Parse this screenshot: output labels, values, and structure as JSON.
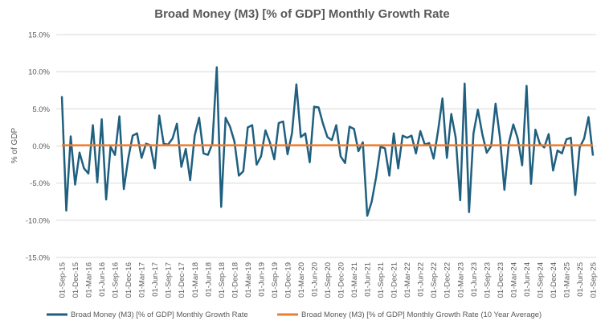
{
  "chart_data": {
    "type": "line",
    "title": "Broad Money (M3) [% of GDP] Monthly Growth Rate",
    "xlabel": "",
    "ylabel": "% of GDP",
    "ylim": [
      -15,
      15
    ],
    "y_ticks": [
      "15.0%",
      "10.0%",
      "5.0%",
      "0.0%",
      "-5.0%",
      "-10.0%",
      "-15.0%"
    ],
    "y_tick_values": [
      15,
      10,
      5,
      0,
      -5,
      -10,
      -15
    ],
    "x_ticks": [
      "01-Sep-15",
      "01-Dec-15",
      "01-Mar-16",
      "01-Jun-16",
      "01-Sep-16",
      "01-Dec-16",
      "01-Mar-17",
      "01-Jun-17",
      "01-Sep-17",
      "01-Dec-17",
      "01-Mar-18",
      "01-Jun-18",
      "01-Sep-18",
      "01-Dec-18",
      "01-Mar-19",
      "01-Jun-19",
      "01-Sep-19",
      "01-Dec-19",
      "01-Mar-20",
      "01-Jun-20",
      "01-Sep-20",
      "01-Dec-20",
      "01-Mar-21",
      "01-Jun-21",
      "01-Sep-21",
      "01-Dec-21",
      "01-Mar-22",
      "01-Jun-22",
      "01-Sep-22",
      "01-Dec-22",
      "01-Mar-23",
      "01-Jun-23",
      "01-Sep-23",
      "01-Dec-23",
      "01-Mar-24",
      "01-Jun-24",
      "01-Sep-24",
      "01-Dec-24",
      "01-Mar-25",
      "01-Jun-25",
      "01-Sep-25"
    ],
    "grid": true,
    "legend_position": "bottom",
    "series": [
      {
        "name": "Broad Money (M3) [% of GDP] Monthly Growth Rate",
        "color": "#1f5f7f",
        "values": [
          6.7,
          -8.7,
          1.3,
          -5.2,
          -0.9,
          -3.0,
          -3.7,
          2.8,
          -4.9,
          3.6,
          -7.2,
          -0.1,
          -1.2,
          4.0,
          -5.8,
          -1.7,
          1.4,
          1.7,
          -1.6,
          0.3,
          0.1,
          -3.0,
          4.1,
          0.3,
          0.2,
          1.0,
          3.0,
          -2.8,
          -0.4,
          -4.6,
          1.4,
          3.8,
          -1.0,
          -1.2,
          0.3,
          10.6,
          -8.2,
          3.8,
          2.6,
          0.6,
          -4.0,
          -3.4,
          2.5,
          2.8,
          -2.5,
          -1.4,
          2.1,
          0.5,
          -1.8,
          3.1,
          3.3,
          -1.1,
          1.7,
          8.3,
          1.2,
          1.7,
          -2.2,
          5.3,
          5.2,
          3.0,
          1.2,
          0.8,
          2.8,
          -1.4,
          -2.3,
          2.6,
          2.3,
          -0.7,
          0.5,
          -9.4,
          -7.5,
          -4.2,
          -0.1,
          -0.3,
          -4.0,
          1.7,
          -3.0,
          1.4,
          1.1,
          1.4,
          -1.0,
          2.0,
          0.2,
          0.4,
          -1.7,
          2.0,
          6.4,
          -1.6,
          4.3,
          1.1,
          -7.3,
          8.4,
          -8.9,
          1.7,
          4.9,
          1.6,
          -0.9,
          0.0,
          5.7,
          1.1,
          -5.9,
          0.4,
          2.9,
          1.0,
          -2.6,
          8.1,
          -5.1,
          2.2,
          0.3,
          -0.2,
          1.6,
          -3.3,
          -0.6,
          -1.0,
          0.9,
          1.1,
          -6.6,
          -0.2,
          1.0,
          3.9,
          -1.3
        ]
      },
      {
        "name": "Broad Money (M3) [% of GDP] Monthly Growth Rate (10 Year Average)",
        "color": "#ed7d31",
        "value": 0.1
      }
    ]
  }
}
